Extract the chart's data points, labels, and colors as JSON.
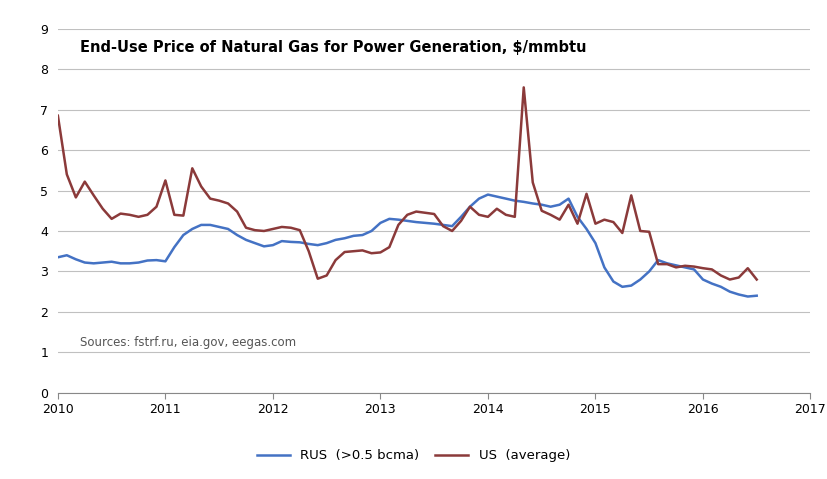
{
  "title": "End-Use Price of Natural Gas for Power Generation, $/mmbtu",
  "source_text": "Sources: fstrf.ru, eia.gov, eegas.com",
  "legend_rus": "RUS  (>0.5 bcma)",
  "legend_us": "US  (average)",
  "color_rus": "#4472C4",
  "color_us": "#8B3A3A",
  "xlim": [
    2010,
    2017
  ],
  "ylim": [
    0,
    9
  ],
  "yticks": [
    0,
    1,
    2,
    3,
    4,
    5,
    6,
    7,
    8,
    9
  ],
  "xticks": [
    2010,
    2011,
    2012,
    2013,
    2014,
    2015,
    2016,
    2017
  ],
  "rus_x": [
    2010.0,
    2010.083,
    2010.167,
    2010.25,
    2010.333,
    2010.417,
    2010.5,
    2010.583,
    2010.667,
    2010.75,
    2010.833,
    2010.917,
    2011.0,
    2011.083,
    2011.167,
    2011.25,
    2011.333,
    2011.417,
    2011.5,
    2011.583,
    2011.667,
    2011.75,
    2011.833,
    2011.917,
    2012.0,
    2012.083,
    2012.167,
    2012.25,
    2012.333,
    2012.417,
    2012.5,
    2012.583,
    2012.667,
    2012.75,
    2012.833,
    2012.917,
    2013.0,
    2013.083,
    2013.167,
    2013.25,
    2013.333,
    2013.417,
    2013.5,
    2013.583,
    2013.667,
    2013.75,
    2013.833,
    2013.917,
    2014.0,
    2014.083,
    2014.167,
    2014.25,
    2014.333,
    2014.417,
    2014.5,
    2014.583,
    2014.667,
    2014.75,
    2014.833,
    2014.917,
    2015.0,
    2015.083,
    2015.167,
    2015.25,
    2015.333,
    2015.417,
    2015.5,
    2015.583,
    2015.667,
    2015.75,
    2015.833,
    2015.917,
    2016.0,
    2016.083,
    2016.167,
    2016.25,
    2016.333,
    2016.417,
    2016.5
  ],
  "rus_y": [
    3.35,
    3.4,
    3.3,
    3.22,
    3.2,
    3.22,
    3.24,
    3.2,
    3.2,
    3.22,
    3.27,
    3.28,
    3.25,
    3.6,
    3.9,
    4.05,
    4.15,
    4.15,
    4.1,
    4.05,
    3.9,
    3.78,
    3.7,
    3.62,
    3.65,
    3.75,
    3.73,
    3.72,
    3.68,
    3.65,
    3.7,
    3.78,
    3.82,
    3.88,
    3.9,
    4.0,
    4.2,
    4.3,
    4.28,
    4.25,
    4.22,
    4.2,
    4.18,
    4.15,
    4.12,
    4.35,
    4.6,
    4.8,
    4.9,
    4.85,
    4.8,
    4.75,
    4.72,
    4.68,
    4.65,
    4.6,
    4.65,
    4.8,
    4.35,
    4.05,
    3.7,
    3.1,
    2.75,
    2.62,
    2.65,
    2.8,
    3.0,
    3.28,
    3.2,
    3.15,
    3.1,
    3.05,
    2.8,
    2.7,
    2.62,
    2.5,
    2.43,
    2.38,
    2.4
  ],
  "us_x": [
    2010.0,
    2010.083,
    2010.167,
    2010.25,
    2010.333,
    2010.417,
    2010.5,
    2010.583,
    2010.667,
    2010.75,
    2010.833,
    2010.917,
    2011.0,
    2011.083,
    2011.167,
    2011.25,
    2011.333,
    2011.417,
    2011.5,
    2011.583,
    2011.667,
    2011.75,
    2011.833,
    2011.917,
    2012.0,
    2012.083,
    2012.167,
    2012.25,
    2012.333,
    2012.417,
    2012.5,
    2012.583,
    2012.667,
    2012.75,
    2012.833,
    2012.917,
    2013.0,
    2013.083,
    2013.167,
    2013.25,
    2013.333,
    2013.417,
    2013.5,
    2013.583,
    2013.667,
    2013.75,
    2013.833,
    2013.917,
    2014.0,
    2014.083,
    2014.167,
    2014.25,
    2014.333,
    2014.417,
    2014.5,
    2014.583,
    2014.667,
    2014.75,
    2014.833,
    2014.917,
    2015.0,
    2015.083,
    2015.167,
    2015.25,
    2015.333,
    2015.417,
    2015.5,
    2015.583,
    2015.667,
    2015.75,
    2015.833,
    2015.917,
    2016.0,
    2016.083,
    2016.167,
    2016.25,
    2016.333,
    2016.417,
    2016.5
  ],
  "us_y": [
    6.85,
    5.4,
    4.83,
    5.22,
    4.88,
    4.55,
    4.3,
    4.43,
    4.4,
    4.35,
    4.4,
    4.6,
    5.25,
    4.4,
    4.38,
    5.55,
    5.1,
    4.8,
    4.75,
    4.68,
    4.48,
    4.08,
    4.02,
    4.0,
    4.05,
    4.1,
    4.08,
    4.02,
    3.5,
    2.82,
    2.9,
    3.28,
    3.48,
    3.5,
    3.52,
    3.45,
    3.47,
    3.6,
    4.15,
    4.4,
    4.48,
    4.45,
    4.42,
    4.12,
    4.0,
    4.25,
    4.6,
    4.4,
    4.35,
    4.55,
    4.4,
    4.35,
    7.55,
    5.2,
    4.5,
    4.4,
    4.28,
    4.65,
    4.18,
    4.92,
    4.18,
    4.28,
    4.22,
    3.95,
    4.88,
    4.0,
    3.98,
    3.18,
    3.18,
    3.1,
    3.14,
    3.12,
    3.08,
    3.05,
    2.9,
    2.8,
    2.85,
    3.08,
    2.8
  ]
}
